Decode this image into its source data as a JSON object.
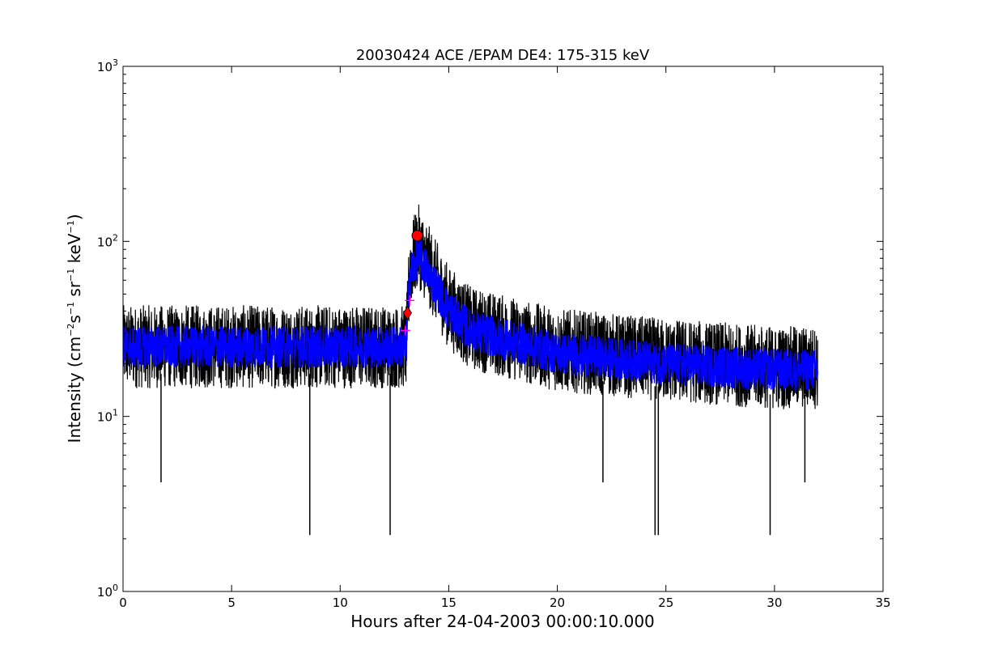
{
  "chart_data": {
    "type": "line",
    "title": "20030424 ACE /EPAM DE4: 175-315 keV",
    "xlabel": "Hours after 24-04-2003 00:00:10.000",
    "ylabel": {
      "prefix": "Intensity (cm",
      "exp1": "−2",
      "mid1": "s",
      "exp2": "−1",
      "mid2": " sr",
      "exp3": "−1",
      "mid3": " keV",
      "exp4": "−1",
      "suffix": ")"
    },
    "xlim": [
      0,
      35
    ],
    "ylim": [
      1,
      1000
    ],
    "yscale": "log",
    "x_ticks": [
      0,
      5,
      10,
      15,
      20,
      25,
      30,
      35
    ],
    "x_tick_labels": [
      "0",
      "5",
      "10",
      "15",
      "20",
      "25",
      "30",
      "35"
    ],
    "y_ticks": [
      1,
      10,
      100,
      1000
    ],
    "y_tick_labels": [
      {
        "base": "10",
        "exp": "0"
      },
      {
        "base": "10",
        "exp": "1"
      },
      {
        "base": "10",
        "exp": "2"
      },
      {
        "base": "10",
        "exp": "3"
      }
    ],
    "grid": false,
    "series": [
      {
        "color": "#000000",
        "style": "raw noisy data",
        "trend": [
          [
            0,
            25
          ],
          [
            13.05,
            25
          ],
          [
            13.2,
            70
          ],
          [
            13.6,
            95
          ],
          [
            14,
            75
          ],
          [
            15,
            42
          ],
          [
            16,
            32
          ],
          [
            20,
            24
          ],
          [
            25,
            21
          ],
          [
            30,
            19
          ],
          [
            32,
            19
          ]
        ],
        "dips": [
          [
            1.75,
            4.2
          ],
          [
            8.6,
            2.1
          ],
          [
            12.3,
            2.1
          ],
          [
            22.1,
            4.2
          ],
          [
            24.5,
            2.1
          ],
          [
            24.65,
            2.1
          ],
          [
            29.8,
            2.1
          ],
          [
            31.4,
            4.2
          ]
        ]
      },
      {
        "color": "#0000ff",
        "style": "smoothed data",
        "trend": [
          [
            0,
            25
          ],
          [
            13.05,
            25
          ],
          [
            13.2,
            65
          ],
          [
            13.6,
            82
          ],
          [
            14,
            68
          ],
          [
            15,
            40
          ],
          [
            16,
            31
          ],
          [
            20,
            23
          ],
          [
            25,
            20
          ],
          [
            30,
            18.5
          ],
          [
            32,
            18.5
          ]
        ]
      }
    ],
    "markers": [
      {
        "shape": "circle",
        "color": "#ff0000",
        "x": 13.55,
        "y": 108
      },
      {
        "shape": "diamond",
        "color": "#ff0000",
        "x": 13.1,
        "y": 39
      },
      {
        "shape": "plus",
        "color": "#ff00ff",
        "x": 13.2,
        "y": 46
      },
      {
        "shape": "plus",
        "color": "#ff00ff",
        "x": 13.0,
        "y": 31
      }
    ]
  }
}
